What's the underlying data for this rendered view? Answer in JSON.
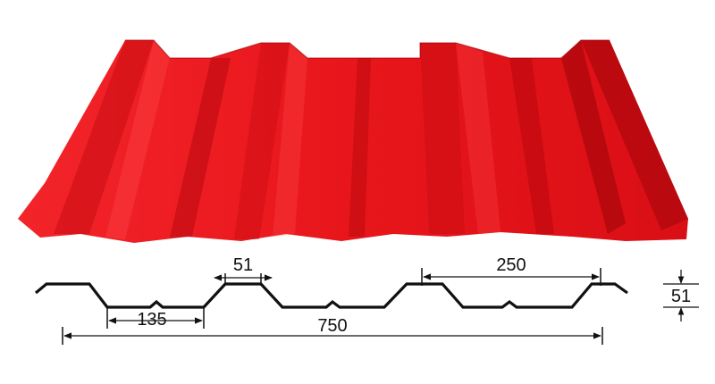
{
  "product": {
    "color": "#e8161b",
    "shade_color": "#b8070e",
    "highlight_color": "#ff3a3a"
  },
  "profile": {
    "line_color": "#111111",
    "dimensions": {
      "rib_top_width": "51",
      "rib_spacing": "250",
      "pan_width": "135",
      "cover_width": "750",
      "rib_height": "51"
    }
  }
}
